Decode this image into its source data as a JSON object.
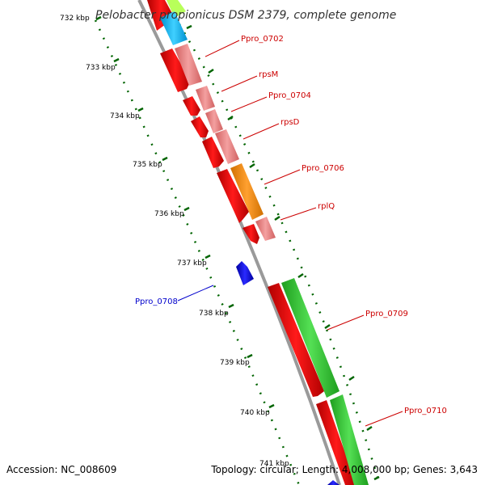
{
  "title": "Pelobacter propionicus DSM 2379, complete genome",
  "footer": {
    "accession": "Accession: NC_008609",
    "stats": "Topology: circular; Length: 4,008,000 bp; Genes: 3,643"
  },
  "ticks": [
    "732 kbp",
    "733 kbp",
    "734 kbp",
    "735 kbp",
    "736 kbp",
    "737 kbp",
    "738 kbp",
    "739 kbp",
    "740 kbp"
  ],
  "gene_labels": [
    {
      "id": "Ppro_0702",
      "text": "Ppro_0702",
      "color": "#cc0000"
    },
    {
      "id": "rpsM",
      "text": "rpsM",
      "color": "#cc0000"
    },
    {
      "id": "Ppro_0704",
      "text": "Ppro_0704",
      "color": "#cc0000"
    },
    {
      "id": "rpsD",
      "text": "rpsD",
      "color": "#cc0000"
    },
    {
      "id": "Ppro_0706",
      "text": "Ppro_0706",
      "color": "#cc0000"
    },
    {
      "id": "rplQ",
      "text": "rplQ",
      "color": "#cc0000"
    },
    {
      "id": "Ppro_0708",
      "text": "Ppro_0708",
      "color": "#0000cc"
    },
    {
      "id": "Ppro_0709",
      "text": "Ppro_0709",
      "color": "#cc0000"
    },
    {
      "id": "Ppro_0710",
      "text": "Ppro_0710",
      "color": "#cc0000"
    }
  ],
  "colors": {
    "cds": "#ff0000",
    "cds_reverse": "#0000ff",
    "cog_J": "#f08080",
    "cog_K": "#ff8c00",
    "cog_M": "#32cd32",
    "cog_D": "#00bfff",
    "cog_light": "#adff2f",
    "backbone": "#888888",
    "tick": "#006400"
  }
}
